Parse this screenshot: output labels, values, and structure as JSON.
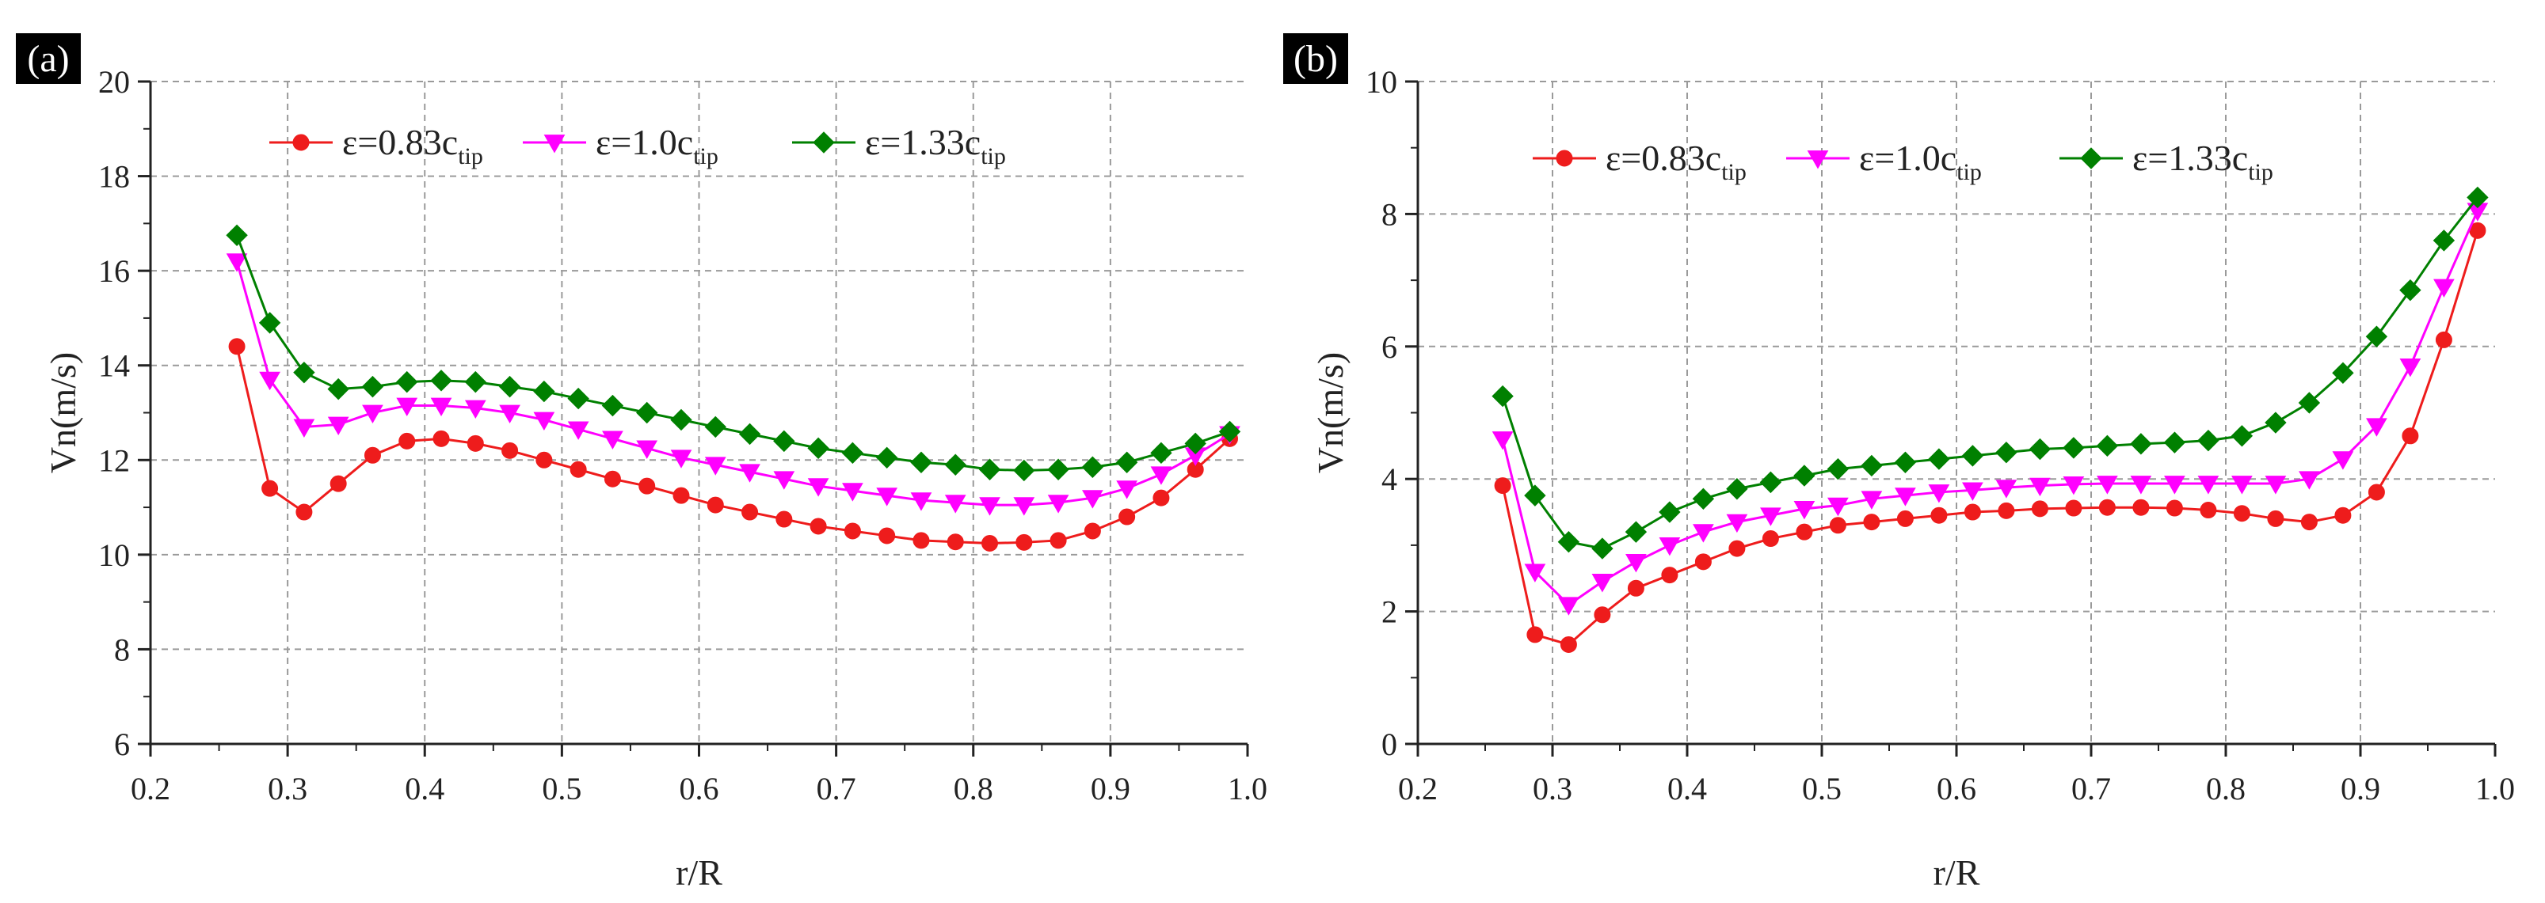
{
  "chart_data": [
    {
      "type": "line",
      "panel_label": "(a)",
      "xlabel": "r/R",
      "ylabel": "Vn(m/s)",
      "xlim": [
        0.2,
        1.0
      ],
      "ylim": [
        6,
        20
      ],
      "xticks": [
        0.2,
        0.3,
        0.4,
        0.5,
        0.6,
        0.7,
        0.8,
        0.9,
        1.0
      ],
      "xtick_labels": [
        "0.2",
        "0.3",
        "0.4",
        "0.5",
        "0.6",
        "0.7",
        "0.8",
        "0.9",
        "1.0"
      ],
      "yticks": [
        6,
        8,
        10,
        12,
        14,
        16,
        18,
        20
      ],
      "ytick_labels": [
        "6",
        "8",
        "10",
        "12",
        "14",
        "16",
        "18",
        "20"
      ],
      "grid": true,
      "legend_position": "top",
      "x": [
        0.263,
        0.287,
        0.312,
        0.337,
        0.362,
        0.387,
        0.412,
        0.437,
        0.462,
        0.487,
        0.512,
        0.537,
        0.562,
        0.587,
        0.612,
        0.637,
        0.662,
        0.687,
        0.712,
        0.737,
        0.762,
        0.787,
        0.812,
        0.837,
        0.862,
        0.887,
        0.912,
        0.937,
        0.962,
        0.987
      ],
      "series": [
        {
          "name": "ε=0.83c",
          "sub": "tip",
          "color": "#ee1c1c",
          "marker": "circle",
          "values": [
            14.4,
            11.4,
            10.9,
            11.5,
            12.1,
            12.4,
            12.45,
            12.35,
            12.2,
            12.0,
            11.8,
            11.6,
            11.45,
            11.25,
            11.05,
            10.9,
            10.75,
            10.6,
            10.5,
            10.4,
            10.3,
            10.27,
            10.24,
            10.26,
            10.3,
            10.5,
            10.8,
            11.2,
            11.8,
            12.45
          ]
        },
        {
          "name": "ε=1.0c",
          "sub": "tip",
          "color": "#ff00ff",
          "marker": "triangle-down",
          "values": [
            16.2,
            13.7,
            12.7,
            12.75,
            13.0,
            13.15,
            13.15,
            13.1,
            13.0,
            12.85,
            12.65,
            12.45,
            12.25,
            12.05,
            11.9,
            11.75,
            11.6,
            11.45,
            11.35,
            11.25,
            11.15,
            11.1,
            11.05,
            11.05,
            11.1,
            11.2,
            11.4,
            11.7,
            12.1,
            12.55
          ]
        },
        {
          "name": "ε=1.33c",
          "sub": "tip",
          "color": "#008000",
          "marker": "diamond",
          "values": [
            16.75,
            14.9,
            13.85,
            13.5,
            13.55,
            13.65,
            13.68,
            13.65,
            13.55,
            13.45,
            13.3,
            13.15,
            13.0,
            12.85,
            12.7,
            12.55,
            12.4,
            12.25,
            12.15,
            12.05,
            11.95,
            11.9,
            11.8,
            11.78,
            11.8,
            11.85,
            11.95,
            12.15,
            12.35,
            12.6
          ]
        }
      ]
    },
    {
      "type": "line",
      "panel_label": "(b)",
      "xlabel": "r/R",
      "ylabel": "Vn(m/s)",
      "xlim": [
        0.2,
        1.0
      ],
      "ylim": [
        0,
        10
      ],
      "xticks": [
        0.2,
        0.3,
        0.4,
        0.5,
        0.6,
        0.7,
        0.8,
        0.9,
        1.0
      ],
      "xtick_labels": [
        "0.2",
        "0.3",
        "0.4",
        "0.5",
        "0.6",
        "0.7",
        "0.8",
        "0.9",
        "1.0"
      ],
      "yticks": [
        0,
        2,
        4,
        6,
        8,
        10
      ],
      "ytick_labels": [
        "0",
        "2",
        "4",
        "6",
        "8",
        "10"
      ],
      "grid": true,
      "legend_position": "top",
      "x": [
        0.263,
        0.287,
        0.312,
        0.337,
        0.362,
        0.387,
        0.412,
        0.437,
        0.462,
        0.487,
        0.512,
        0.537,
        0.562,
        0.587,
        0.612,
        0.637,
        0.662,
        0.687,
        0.712,
        0.737,
        0.762,
        0.787,
        0.812,
        0.837,
        0.862,
        0.887,
        0.912,
        0.937,
        0.962,
        0.987
      ],
      "series": [
        {
          "name": "ε=0.83c",
          "sub": "tip",
          "color": "#ee1c1c",
          "marker": "circle",
          "values": [
            3.9,
            1.65,
            1.5,
            1.95,
            2.35,
            2.55,
            2.75,
            2.95,
            3.1,
            3.2,
            3.3,
            3.35,
            3.4,
            3.45,
            3.5,
            3.52,
            3.55,
            3.56,
            3.57,
            3.57,
            3.56,
            3.53,
            3.48,
            3.4,
            3.35,
            3.45,
            3.8,
            4.65,
            6.1,
            7.75
          ]
        },
        {
          "name": "ε=1.0c",
          "sub": "tip",
          "color": "#ff00ff",
          "marker": "triangle-down",
          "values": [
            4.6,
            2.6,
            2.1,
            2.45,
            2.75,
            3.0,
            3.2,
            3.35,
            3.45,
            3.55,
            3.6,
            3.7,
            3.75,
            3.8,
            3.83,
            3.87,
            3.9,
            3.92,
            3.93,
            3.93,
            3.93,
            3.93,
            3.93,
            3.93,
            4.0,
            4.3,
            4.8,
            5.7,
            6.9,
            8.05
          ]
        },
        {
          "name": "ε=1.33c",
          "sub": "tip",
          "color": "#008000",
          "marker": "diamond",
          "values": [
            5.25,
            3.75,
            3.05,
            2.95,
            3.2,
            3.5,
            3.7,
            3.85,
            3.95,
            4.05,
            4.15,
            4.2,
            4.25,
            4.3,
            4.35,
            4.4,
            4.45,
            4.47,
            4.5,
            4.53,
            4.55,
            4.58,
            4.65,
            4.85,
            5.15,
            5.6,
            6.15,
            6.85,
            7.6,
            8.25
          ]
        }
      ]
    }
  ]
}
